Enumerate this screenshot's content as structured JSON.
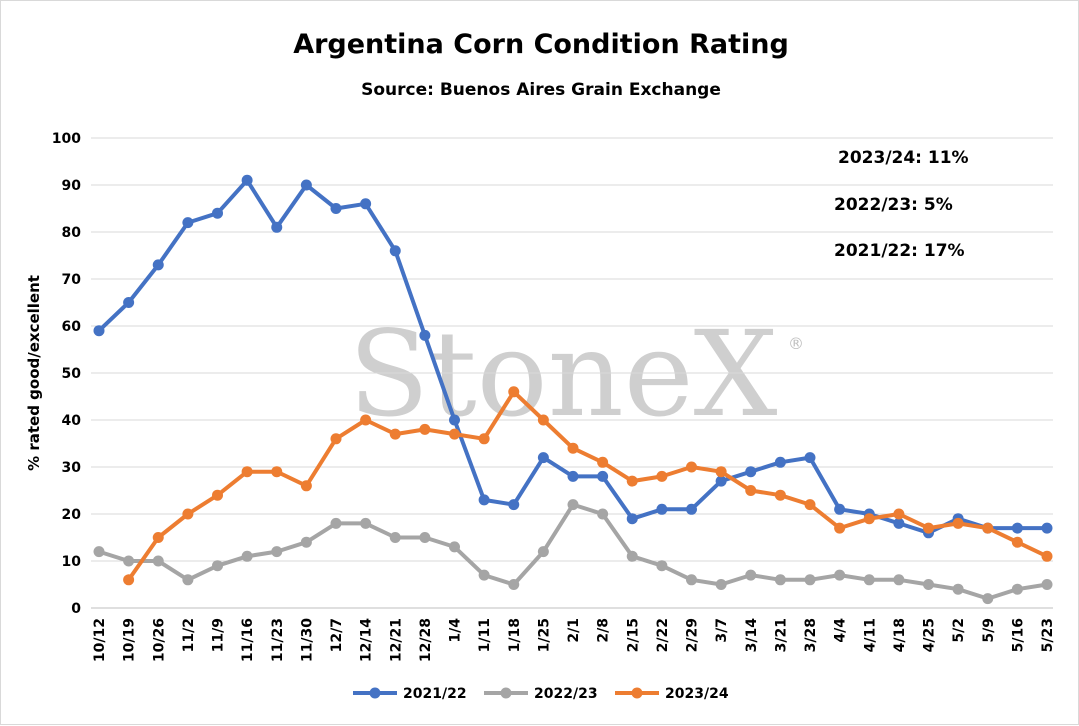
{
  "chart_data": {
    "type": "line",
    "title": "Argentina Corn Condition Rating",
    "subtitle": "Source: Buenos Aires Grain Exchange",
    "ylabel": "% rated good/excellent",
    "xlabel": "",
    "ylim": [
      0,
      100
    ],
    "yticks": [
      0,
      10,
      20,
      30,
      40,
      50,
      60,
      70,
      80,
      90,
      100
    ],
    "grid": "horizontal",
    "legend_position": "bottom",
    "watermark": "StoneX",
    "categories": [
      "10/12",
      "10/19",
      "10/26",
      "11/2",
      "11/9",
      "11/16",
      "11/23",
      "11/30",
      "12/7",
      "12/14",
      "12/21",
      "12/28",
      "1/4",
      "1/11",
      "1/18",
      "1/25",
      "2/1",
      "2/8",
      "2/15",
      "2/22",
      "2/29",
      "3/7",
      "3/14",
      "3/21",
      "3/28",
      "4/4",
      "4/11",
      "4/18",
      "4/25",
      "5/2",
      "5/9",
      "5/16",
      "5/23"
    ],
    "series": [
      {
        "name": "2021/22",
        "color": "#4472c4",
        "values": [
          59,
          65,
          73,
          82,
          84,
          91,
          81,
          90,
          85,
          86,
          76,
          58,
          40,
          23,
          22,
          32,
          28,
          28,
          19,
          21,
          21,
          27,
          29,
          31,
          32,
          21,
          20,
          18,
          16,
          19,
          17,
          17,
          17
        ]
      },
      {
        "name": "2022/23",
        "color": "#a5a5a5",
        "values": [
          12,
          10,
          10,
          6,
          9,
          11,
          12,
          14,
          18,
          18,
          15,
          15,
          13,
          7,
          5,
          12,
          22,
          20,
          11,
          9,
          6,
          5,
          7,
          6,
          6,
          7,
          6,
          6,
          5,
          4,
          2,
          4,
          5
        ]
      },
      {
        "name": "2023/24",
        "color": "#ed7d31",
        "values": [
          null,
          6,
          15,
          20,
          24,
          29,
          29,
          26,
          36,
          40,
          37,
          38,
          37,
          36,
          46,
          40,
          34,
          31,
          27,
          28,
          30,
          29,
          25,
          24,
          22,
          17,
          19,
          20,
          17,
          18,
          17,
          14,
          11
        ]
      }
    ],
    "annotations": [
      "2023/24: 11%",
      "2022/23: 5%",
      "2021/22: 17%"
    ]
  }
}
